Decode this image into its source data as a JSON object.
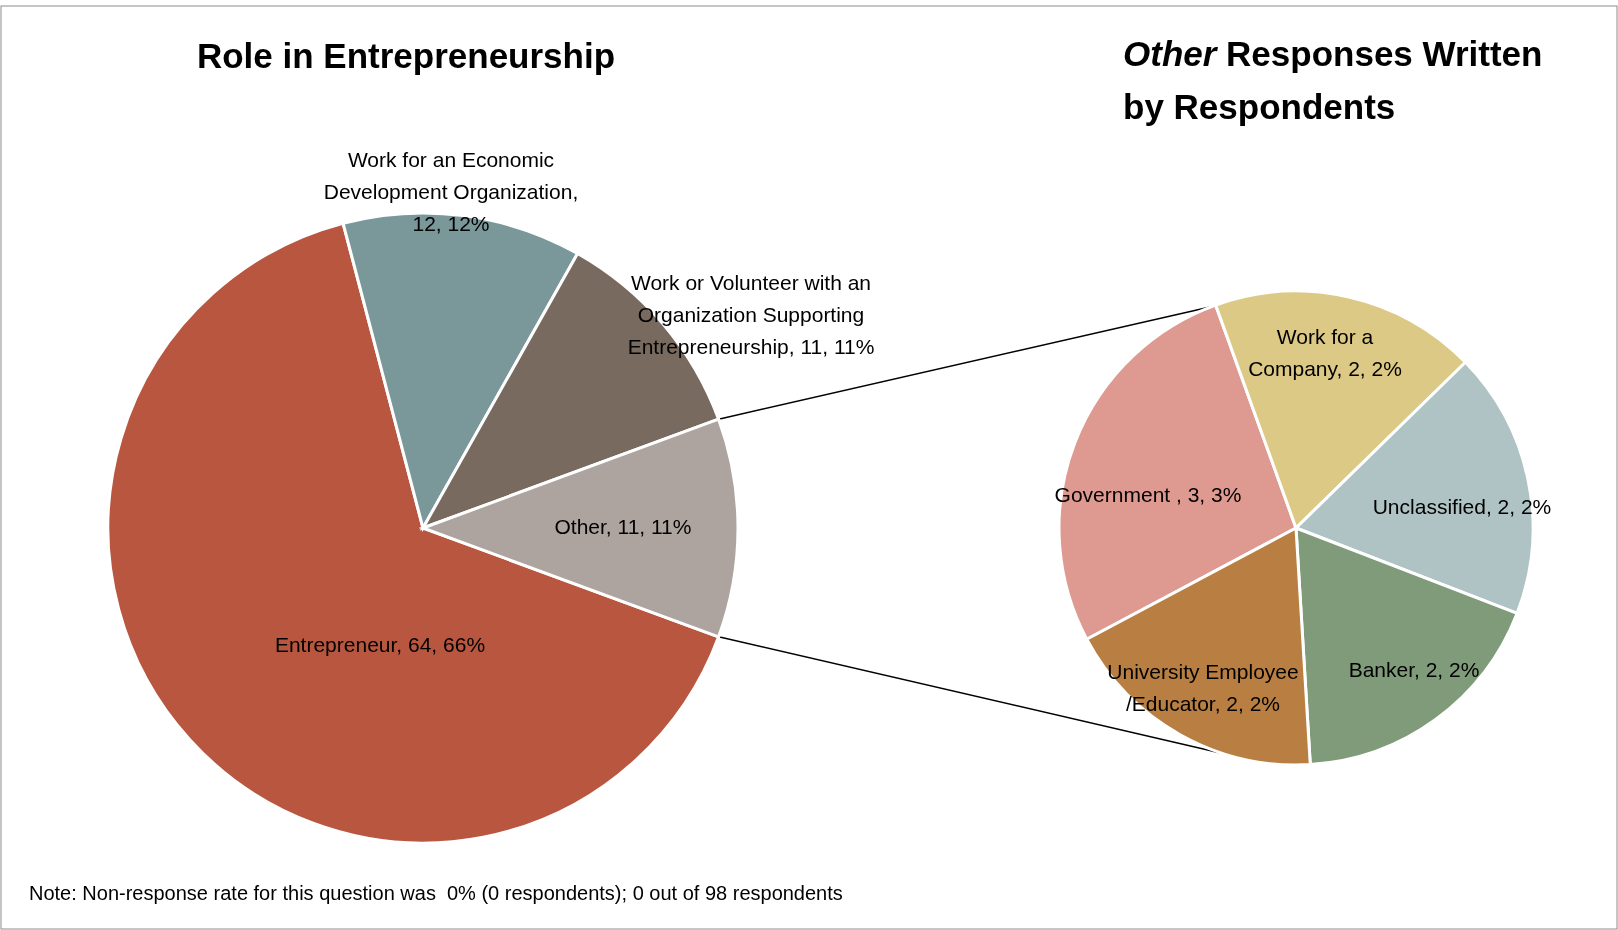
{
  "chart_data": [
    {
      "type": "pie",
      "title": "Role in Entrepreneurship",
      "categories": [
        "Entrepreneur",
        "Work for an Economic Development Organization",
        "Work or Volunteer with an Organization Supporting Entrepreneurship",
        "Other"
      ],
      "values": [
        64,
        12,
        11,
        11
      ],
      "colors": [
        "#b9563f",
        "#7a9899",
        "#786a5e",
        "#aea49f"
      ],
      "value_labels": [
        ", 64, 66%",
        ", 12, 12%",
        ", 11, 11%",
        ", 11, 11%"
      ],
      "annotations": [
        "Note: Non-response rate for this question was  0% (0 respondents); 0 out of 98 respondents"
      ]
    },
    {
      "type": "pie",
      "title": "Other Responses Written by Respondents",
      "categories": [
        "Government ",
        "Work for a Company",
        "Unclassified",
        "Banker",
        "University Employee /Educator"
      ],
      "values": [
        3,
        2,
        2,
        2,
        2
      ],
      "colors": [
        "#de9a90",
        "#dcc985",
        "#afc3c4",
        "#7f9b79",
        "#b97f42"
      ],
      "value_labels": [
        ", 3, 3%",
        ", 2, 2%",
        ", 2, 2%",
        ", 2, 2%",
        ", 2, 2%"
      ]
    }
  ]
}
